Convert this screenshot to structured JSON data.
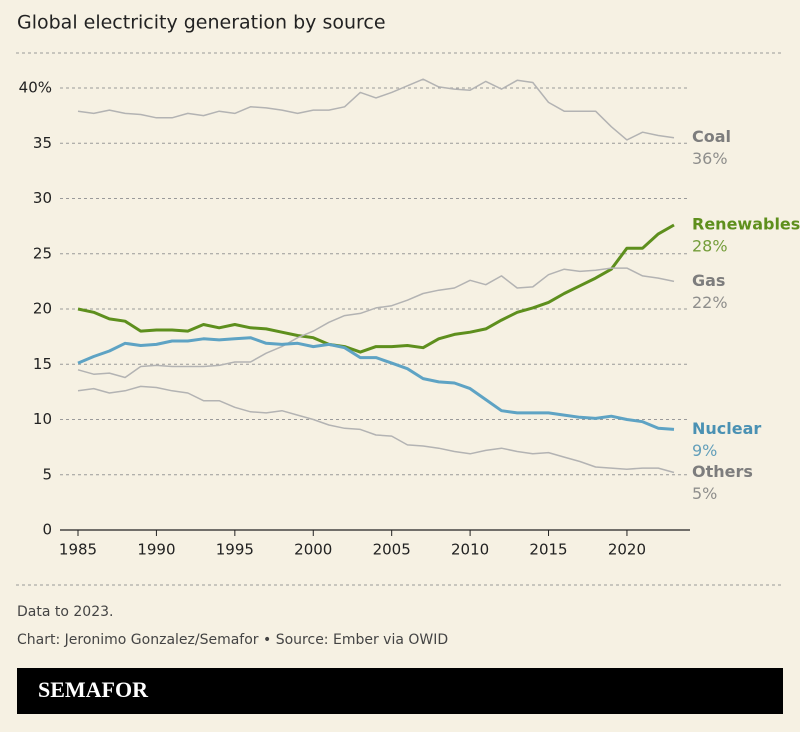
{
  "chart_data": {
    "type": "line",
    "title": "Global electricity generation by source",
    "x": [
      1985,
      1986,
      1987,
      1988,
      1989,
      1990,
      1991,
      1992,
      1993,
      1994,
      1995,
      1996,
      1997,
      1998,
      1999,
      2000,
      2001,
      2002,
      2003,
      2004,
      2005,
      2006,
      2007,
      2008,
      2009,
      2010,
      2011,
      2012,
      2013,
      2014,
      2015,
      2016,
      2017,
      2018,
      2019,
      2020,
      2021,
      2022,
      2023
    ],
    "xlim": [
      1985,
      2023
    ],
    "xticks": [
      1985,
      1990,
      1995,
      2000,
      2005,
      2010,
      2015,
      2020
    ],
    "ylim": [
      0,
      40
    ],
    "yticks": [
      0,
      5,
      10,
      15,
      20,
      25,
      30,
      35,
      {
        "value": 40,
        "label": "40%"
      }
    ],
    "grid": true,
    "series": [
      {
        "name": "Coal",
        "color": "#b3b3b3",
        "label_color": "#7d7d7d",
        "width": 1.5,
        "values": [
          37.9,
          37.7,
          38.0,
          37.7,
          37.6,
          37.3,
          37.3,
          37.7,
          37.5,
          37.9,
          37.7,
          38.3,
          38.2,
          38.0,
          37.7,
          38.0,
          38.0,
          38.3,
          39.6,
          39.1,
          39.6,
          40.2,
          40.8,
          40.1,
          39.9,
          39.8,
          40.6,
          39.9,
          40.7,
          40.5,
          38.7,
          37.9,
          37.9,
          37.9,
          36.5,
          35.3,
          36.0,
          35.7,
          35.5
        ],
        "value_labels": [
          null,
          null,
          null,
          null,
          null,
          null,
          null,
          null,
          null,
          null,
          null,
          null,
          null,
          null,
          null,
          null,
          null,
          null,
          null,
          null,
          null,
          null,
          null,
          null,
          null,
          null,
          null,
          null,
          null,
          null,
          null,
          null,
          null,
          null,
          null,
          null,
          null,
          null,
          "36%"
        ]
      },
      {
        "name": "Renewables",
        "color": "#5e8f1d",
        "label_color": "#5e8f1d",
        "width": 3,
        "values": [
          20.0,
          19.7,
          19.1,
          18.9,
          18.0,
          18.1,
          18.1,
          18.0,
          18.6,
          18.3,
          18.6,
          18.3,
          18.2,
          17.9,
          17.6,
          17.4,
          16.8,
          16.6,
          16.1,
          16.6,
          16.6,
          16.7,
          16.5,
          17.3,
          17.7,
          17.9,
          18.2,
          19.0,
          19.7,
          20.1,
          20.6,
          21.4,
          22.1,
          22.8,
          23.6,
          25.5,
          25.5,
          26.8,
          27.6
        ],
        "value_labels": [
          null,
          null,
          null,
          null,
          null,
          null,
          null,
          null,
          null,
          null,
          null,
          null,
          null,
          null,
          null,
          null,
          null,
          null,
          null,
          null,
          null,
          null,
          null,
          null,
          null,
          null,
          null,
          null,
          null,
          null,
          null,
          null,
          null,
          null,
          null,
          null,
          null,
          null,
          "28%"
        ]
      },
      {
        "name": "Gas",
        "color": "#b3b3b3",
        "label_color": "#7d7d7d",
        "width": 1.5,
        "values": [
          14.5,
          14.1,
          14.2,
          13.8,
          14.8,
          14.9,
          14.8,
          14.8,
          14.8,
          14.9,
          15.2,
          15.2,
          16.0,
          16.6,
          17.4,
          18.0,
          18.8,
          19.4,
          19.6,
          20.1,
          20.3,
          20.8,
          21.4,
          21.7,
          21.9,
          22.6,
          22.2,
          23.0,
          21.9,
          22.0,
          23.1,
          23.6,
          23.4,
          23.5,
          23.7,
          23.7,
          23.0,
          22.8,
          22.5
        ],
        "value_labels": [
          null,
          null,
          null,
          null,
          null,
          null,
          null,
          null,
          null,
          null,
          null,
          null,
          null,
          null,
          null,
          null,
          null,
          null,
          null,
          null,
          null,
          null,
          null,
          null,
          null,
          null,
          null,
          null,
          null,
          null,
          null,
          null,
          null,
          null,
          null,
          null,
          null,
          null,
          "22%"
        ]
      },
      {
        "name": "Nuclear",
        "color": "#5ea3c4",
        "label_color": "#4a91b3",
        "width": 3,
        "values": [
          15.1,
          15.7,
          16.2,
          16.9,
          16.7,
          16.8,
          17.1,
          17.1,
          17.3,
          17.2,
          17.3,
          17.4,
          16.9,
          16.8,
          16.9,
          16.6,
          16.8,
          16.5,
          15.6,
          15.6,
          15.1,
          14.6,
          13.7,
          13.4,
          13.3,
          12.8,
          11.8,
          10.8,
          10.6,
          10.6,
          10.6,
          10.4,
          10.2,
          10.1,
          10.3,
          10.0,
          9.8,
          9.2,
          9.1
        ],
        "value_labels": [
          null,
          null,
          null,
          null,
          null,
          null,
          null,
          null,
          null,
          null,
          null,
          null,
          null,
          null,
          null,
          null,
          null,
          null,
          null,
          null,
          null,
          null,
          null,
          null,
          null,
          null,
          null,
          null,
          null,
          null,
          null,
          null,
          null,
          null,
          null,
          null,
          null,
          null,
          "9%"
        ]
      },
      {
        "name": "Others",
        "color": "#b3b3b3",
        "label_color": "#7d7d7d",
        "width": 1.5,
        "values": [
          12.6,
          12.8,
          12.4,
          12.6,
          13.0,
          12.9,
          12.6,
          12.4,
          11.7,
          11.7,
          11.1,
          10.7,
          10.6,
          10.8,
          10.4,
          10.0,
          9.5,
          9.2,
          9.1,
          8.6,
          8.5,
          7.7,
          7.6,
          7.4,
          7.1,
          6.9,
          7.2,
          7.4,
          7.1,
          6.9,
          7.0,
          6.6,
          6.2,
          5.7,
          5.6,
          5.5,
          5.6,
          5.6,
          5.2
        ],
        "value_labels": [
          null,
          null,
          null,
          null,
          null,
          null,
          null,
          null,
          null,
          null,
          null,
          null,
          null,
          null,
          null,
          null,
          null,
          null,
          null,
          null,
          null,
          null,
          null,
          null,
          null,
          null,
          null,
          null,
          null,
          null,
          null,
          null,
          null,
          null,
          null,
          null,
          null,
          null,
          "5%"
        ]
      }
    ],
    "note": "Data to 2023.",
    "source": "Chart: Jeronimo Gonzalez/Semafor • Source: Ember via OWID",
    "brand": "SEMAFOR"
  }
}
